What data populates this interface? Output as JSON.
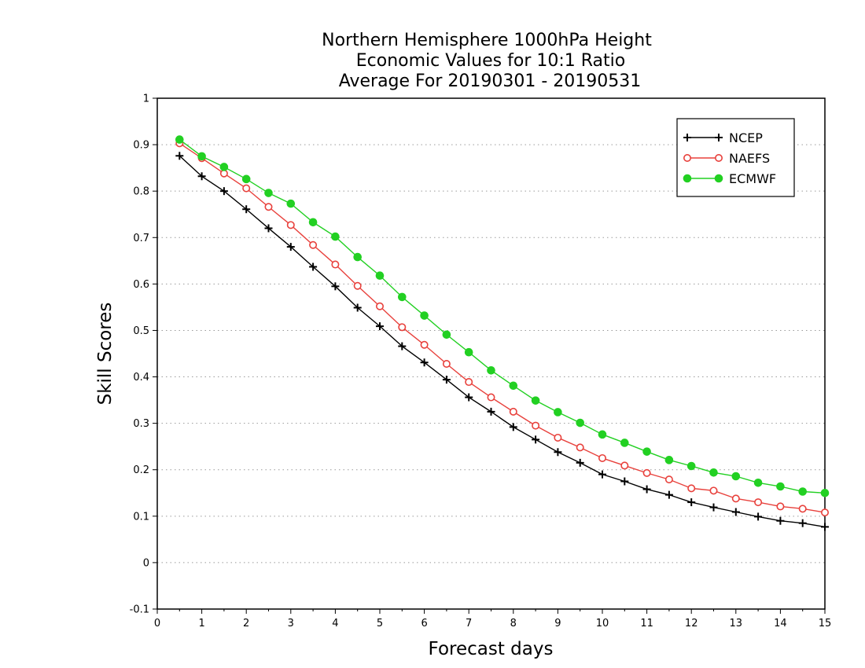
{
  "chart_data": {
    "type": "line",
    "title": [
      "Northern Hemisphere 1000hPa Height",
      "Economic Values for 10:1 Ratio",
      "Average For 20190301 - 20190531"
    ],
    "xlabel": "Forecast days",
    "ylabel": "Skill Scores",
    "xlim": [
      0,
      15
    ],
    "ylim": [
      -0.1,
      1
    ],
    "xticks": [
      0,
      1,
      2,
      3,
      4,
      5,
      6,
      7,
      8,
      9,
      10,
      11,
      12,
      13,
      14,
      15
    ],
    "yticks": [
      -0.1,
      0,
      0.1,
      0.2,
      0.3,
      0.4,
      0.5,
      0.6,
      0.7,
      0.8,
      0.9,
      1
    ],
    "yticklabels": [
      "-0.1",
      "0",
      "0.1",
      "0.2",
      "0.3",
      "0.4",
      "0.5",
      "0.6",
      "0.7",
      "0.8",
      "0.9",
      "1"
    ],
    "grid": "horizontal dotted",
    "legend_position": "top-right",
    "x": [
      0.5,
      1,
      1.5,
      2,
      2.5,
      3,
      3.5,
      4,
      4.5,
      5,
      5.5,
      6,
      6.5,
      7,
      7.5,
      8,
      8.5,
      9,
      9.5,
      10,
      10.5,
      11,
      11.5,
      12,
      12.5,
      13,
      13.5,
      14,
      14.5,
      15
    ],
    "series": [
      {
        "name": "NCEP",
        "color": "#000000",
        "marker": "plus",
        "values": [
          0.876,
          0.832,
          0.8,
          0.761,
          0.72,
          0.68,
          0.637,
          0.595,
          0.549,
          0.509,
          0.466,
          0.431,
          0.394,
          0.356,
          0.325,
          0.292,
          0.265,
          0.238,
          0.215,
          0.19,
          0.175,
          0.158,
          0.146,
          0.13,
          0.119,
          0.109,
          0.099,
          0.09,
          0.085,
          0.077
        ]
      },
      {
        "name": "NAEFS",
        "color": "#e8413c",
        "marker": "open-circle",
        "values": [
          0.903,
          0.871,
          0.838,
          0.806,
          0.766,
          0.727,
          0.684,
          0.642,
          0.596,
          0.552,
          0.507,
          0.469,
          0.428,
          0.389,
          0.356,
          0.325,
          0.295,
          0.269,
          0.248,
          0.225,
          0.209,
          0.193,
          0.179,
          0.16,
          0.155,
          0.138,
          0.13,
          0.121,
          0.116,
          0.108
        ]
      },
      {
        "name": "ECMWF",
        "color": "#22d022",
        "marker": "filled-circle",
        "values": [
          0.911,
          0.875,
          0.852,
          0.826,
          0.796,
          0.773,
          0.733,
          0.702,
          0.658,
          0.618,
          0.572,
          0.532,
          0.491,
          0.453,
          0.414,
          0.381,
          0.349,
          0.324,
          0.301,
          0.276,
          0.258,
          0.239,
          0.221,
          0.208,
          0.194,
          0.186,
          0.172,
          0.164,
          0.153,
          0.15
        ]
      }
    ]
  }
}
